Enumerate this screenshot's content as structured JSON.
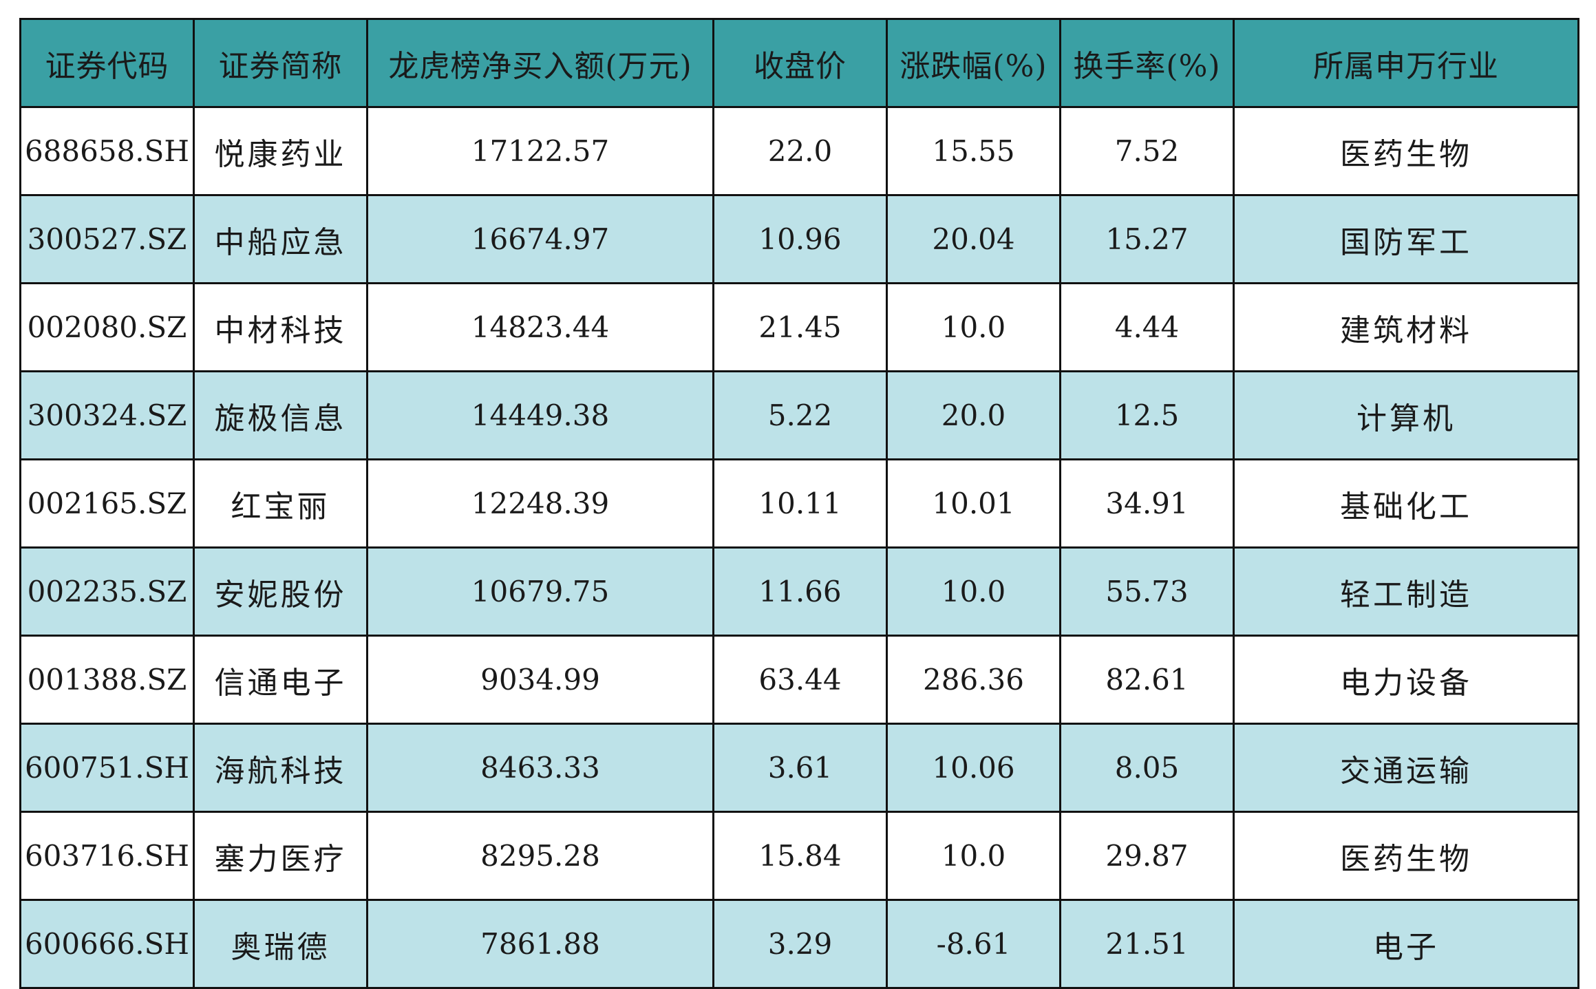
{
  "colors": {
    "header_bg": "#3aa0a4",
    "stripe_bg": "#bde2e8",
    "plain_bg": "#ffffff",
    "border": "#111111"
  },
  "table": {
    "headers": [
      "证券代码",
      "证券简称",
      "龙虎榜净买入额(万元)",
      "收盘价",
      "涨跌幅(%)",
      "换手率(%)",
      "所属申万行业"
    ],
    "rows": [
      [
        "688658.SH",
        "悦康药业",
        "17122.57",
        "22.0",
        "15.55",
        "7.52",
        "医药生物"
      ],
      [
        "300527.SZ",
        "中船应急",
        "16674.97",
        "10.96",
        "20.04",
        "15.27",
        "国防军工"
      ],
      [
        "002080.SZ",
        "中材科技",
        "14823.44",
        "21.45",
        "10.0",
        "4.44",
        "建筑材料"
      ],
      [
        "300324.SZ",
        "旋极信息",
        "14449.38",
        "5.22",
        "20.0",
        "12.5",
        "计算机"
      ],
      [
        "002165.SZ",
        "红宝丽",
        "12248.39",
        "10.11",
        "10.01",
        "34.91",
        "基础化工"
      ],
      [
        "002235.SZ",
        "安妮股份",
        "10679.75",
        "11.66",
        "10.0",
        "55.73",
        "轻工制造"
      ],
      [
        "001388.SZ",
        "信通电子",
        "9034.99",
        "63.44",
        "286.36",
        "82.61",
        "电力设备"
      ],
      [
        "600751.SH",
        "海航科技",
        "8463.33",
        "3.61",
        "10.06",
        "8.05",
        "交通运输"
      ],
      [
        "603716.SH",
        "塞力医疗",
        "8295.28",
        "15.84",
        "10.0",
        "29.87",
        "医药生物"
      ],
      [
        "600666.SH",
        "奥瑞德",
        "7861.88",
        "3.29",
        "-8.61",
        "21.51",
        "电子"
      ]
    ]
  }
}
